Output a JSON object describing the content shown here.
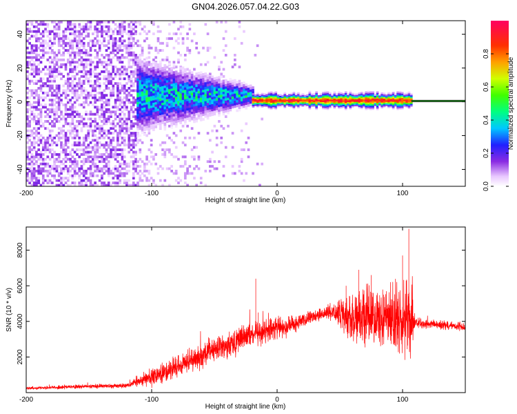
{
  "figure_title": "GN04.2026.057.04.22.G03",
  "chart_data": [
    {
      "type": "heatmap",
      "title": "GN04.2026.057.04.22.G03",
      "xlabel": "Height of straight line (km)",
      "ylabel": "Frequency (Hz)",
      "xlim": [
        -200,
        150
      ],
      "ylim": [
        -50,
        48
      ],
      "x_ticks": [
        -200,
        -100,
        0,
        100
      ],
      "x_tick_labels": [
        "-200",
        "-100",
        "0",
        "100"
      ],
      "y_ticks": [
        -40,
        -20,
        0,
        20,
        40
      ],
      "y_tick_labels": [
        "-40",
        "-20",
        "0",
        "20",
        "40"
      ],
      "colorbar": {
        "label": "Normalized spectral amplitude",
        "range": [
          0,
          1
        ],
        "ticks": [
          0,
          0.2,
          0.4,
          0.6,
          0.8
        ],
        "tick_labels": [
          "0.0",
          "0.2",
          "0.4",
          "0.6",
          "0.8"
        ]
      },
      "features": [
        {
          "name": "low-amplitude noise region",
          "x_range": [
            -200,
            -112
          ],
          "freq_range": [
            -50,
            48
          ],
          "amplitude": 0.12
        },
        {
          "name": "broadening signal",
          "x_range": [
            -112,
            -20
          ],
          "freq_center": 3,
          "freq_half_width_start": 15,
          "freq_half_width_end": 4,
          "amplitude": 0.35
        },
        {
          "name": "narrow carrier line",
          "x_range": [
            -20,
            107
          ],
          "freq_center": 0.5,
          "freq_half_width": 2,
          "amplitude": 0.95
        },
        {
          "name": "reference line",
          "x_range": [
            107,
            150
          ],
          "freq_center": 0.5,
          "amplitude": 0.3
        }
      ]
    },
    {
      "type": "line",
      "xlabel": "Height of straight line (km)",
      "ylabel": "SNR (10 * v/v)",
      "xlim": [
        -200,
        150
      ],
      "ylim": [
        0,
        9300
      ],
      "x_ticks": [
        -200,
        -100,
        0,
        100
      ],
      "x_tick_labels": [
        "-200",
        "-100",
        "0",
        "100"
      ],
      "y_ticks": [
        2000,
        4000,
        6000,
        8000
      ],
      "y_tick_labels": [
        "2000",
        "4000",
        "6000",
        "8000"
      ],
      "series": [
        {
          "name": "SNR",
          "color": "#ff0000",
          "x": [
            -200,
            -150,
            -120,
            -110,
            -100,
            -90,
            -80,
            -70,
            -60,
            -50,
            -40,
            -30,
            -20,
            -17,
            -15,
            -10,
            0,
            10,
            20,
            30,
            40,
            50,
            55,
            60,
            65,
            70,
            75,
            80,
            85,
            90,
            95,
            100,
            103,
            105,
            107,
            110,
            115,
            120,
            130,
            140,
            150
          ],
          "values": [
            200,
            300,
            400,
            700,
            900,
            1200,
            1400,
            1800,
            2100,
            2400,
            2700,
            2900,
            3300,
            6400,
            4500,
            3100,
            3600,
            3600,
            4000,
            4400,
            4600,
            4500,
            6000,
            3800,
            6900,
            3500,
            6600,
            4000,
            5500,
            4200,
            3800,
            7700,
            4500,
            9200,
            4200,
            4000,
            3900,
            3900,
            3800,
            3700,
            3700
          ],
          "envelope": {
            "x": [
              -200,
              -120,
              -100,
              -80,
              -60,
              -40,
              -20,
              0,
              20,
              40,
              50,
              60,
              70,
              80,
              90,
              100,
              107,
              110,
              150
            ],
            "mean": [
              250,
              400,
              900,
              1400,
              2100,
              2700,
              3300,
              3600,
              4000,
              4500,
              4400,
              4200,
              4300,
              4200,
              4100,
              4000,
              4100,
              3900,
              3700
            ],
            "spread": [
              120,
              200,
              700,
              900,
              1000,
              1100,
              1000,
              900,
              600,
              500,
              1100,
              2000,
              2400,
              2300,
              2300,
              2600,
              3500,
              400,
              300
            ]
          }
        }
      ]
    }
  ]
}
